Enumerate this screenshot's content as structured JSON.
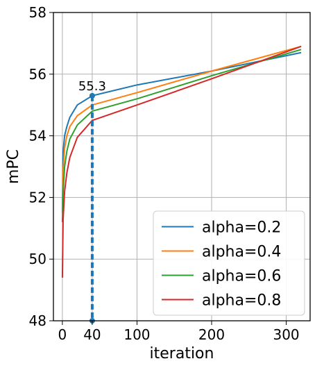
{
  "chart_data": {
    "type": "line",
    "xlabel": "iteration",
    "ylabel": "mPC",
    "xlim": [
      -12,
      332
    ],
    "ylim": [
      48,
      58
    ],
    "xticks": [
      0,
      40,
      100,
      200,
      300
    ],
    "yticks": [
      48,
      50,
      52,
      54,
      56,
      58
    ],
    "grid": true,
    "legend_position": "lower-right",
    "series": [
      {
        "name": "alpha=0.2",
        "color": "#1f77b4",
        "x": [
          0,
          1,
          3,
          6,
          10,
          20,
          40,
          100,
          200,
          320
        ],
        "y": [
          51.6,
          53.5,
          54.0,
          54.3,
          54.6,
          55.0,
          55.3,
          55.65,
          56.1,
          56.7
        ]
      },
      {
        "name": "alpha=0.4",
        "color": "#ff7f0e",
        "x": [
          0,
          1,
          3,
          6,
          10,
          20,
          40,
          100,
          200,
          320
        ],
        "y": [
          51.5,
          52.9,
          53.6,
          54.0,
          54.3,
          54.65,
          55.0,
          55.4,
          56.1,
          56.9
        ]
      },
      {
        "name": "alpha=0.6",
        "color": "#2ca02c",
        "x": [
          0,
          1,
          3,
          6,
          10,
          20,
          40,
          100,
          200,
          320
        ],
        "y": [
          51.2,
          52.2,
          53.0,
          53.5,
          53.9,
          54.35,
          54.8,
          55.2,
          55.95,
          56.8
        ]
      },
      {
        "name": "alpha=0.8",
        "color": "#d62728",
        "x": [
          0,
          1,
          3,
          6,
          10,
          20,
          40,
          100,
          200,
          320
        ],
        "y": [
          49.4,
          51.3,
          52.2,
          52.8,
          53.3,
          53.95,
          54.5,
          55.0,
          55.85,
          56.9
        ]
      }
    ],
    "annotation": {
      "label": "55.3",
      "x": 40,
      "y_top": 55.3,
      "y_bottom": 48,
      "color": "#1f77b4",
      "style": "dashed"
    }
  }
}
